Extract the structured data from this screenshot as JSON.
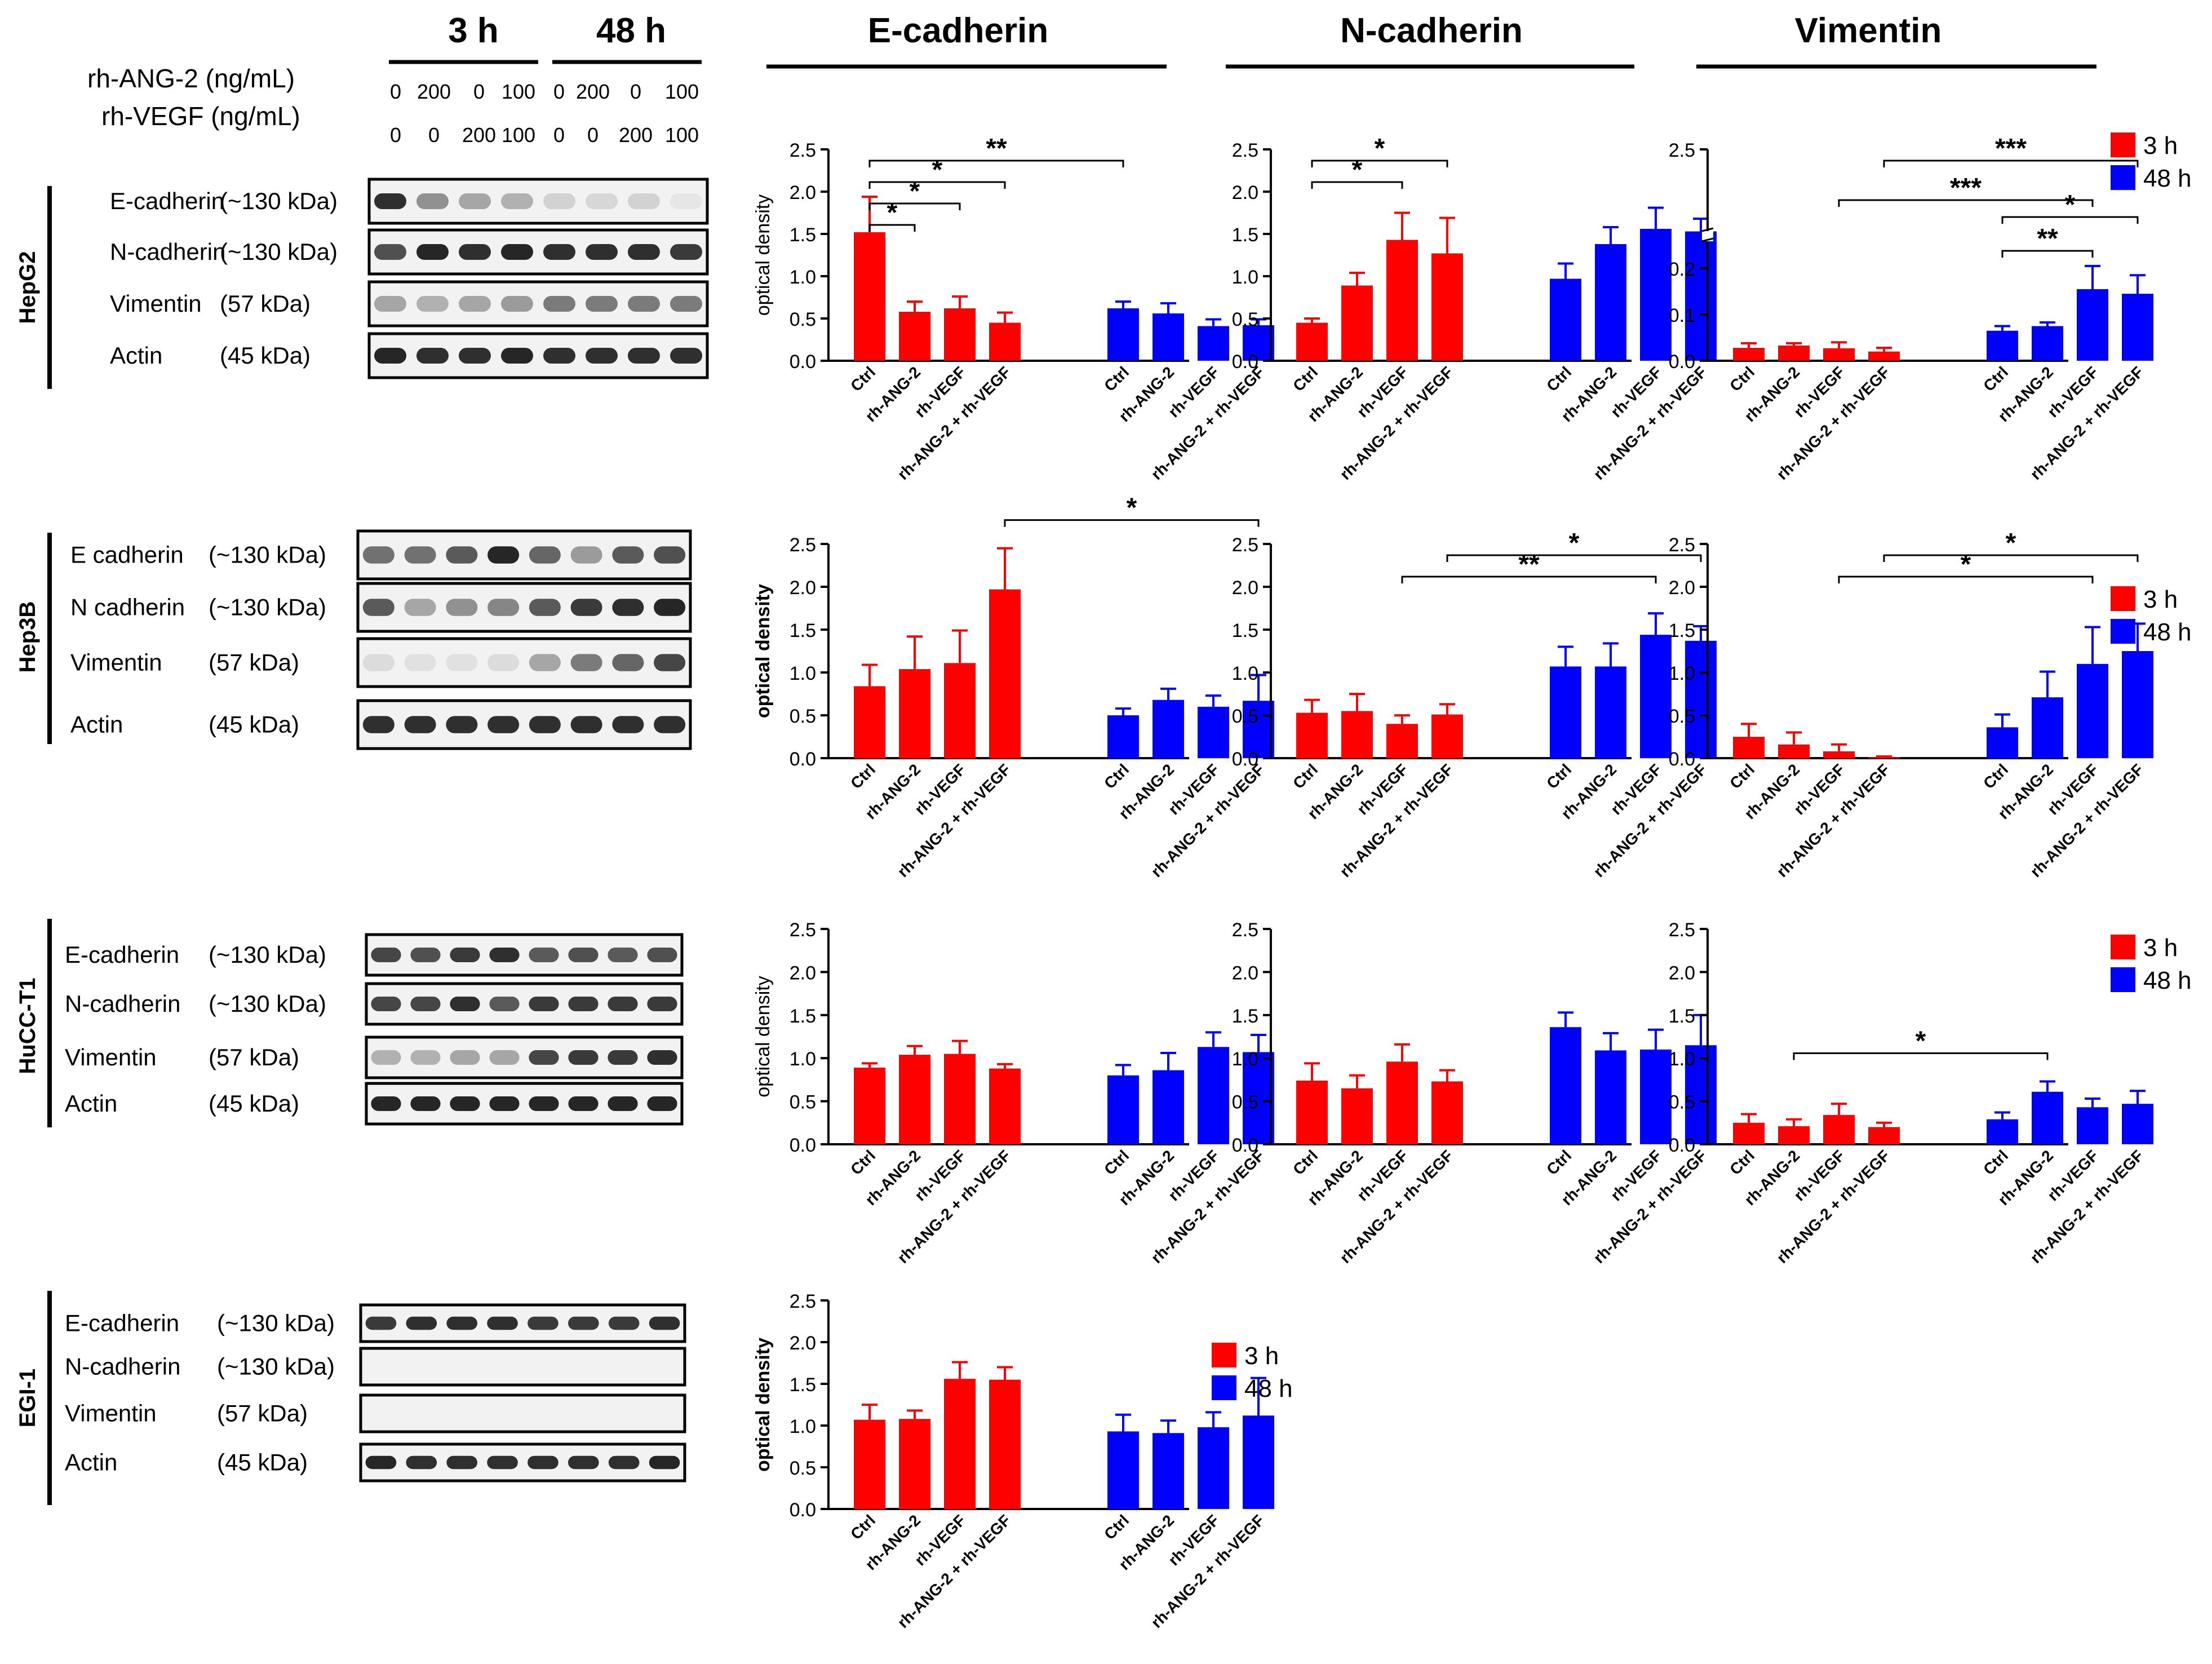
{
  "figure": {
    "time_headers": [
      "3 h",
      "48 h"
    ],
    "column_headers": [
      "E-cadherin",
      "N-cadherin",
      "Vimentin"
    ],
    "treatments": [
      {
        "label": "rh-ANG-2 (ng/mL)",
        "values": [
          "0",
          "200",
          "0",
          "100",
          "0",
          "200",
          "0",
          "100"
        ]
      },
      {
        "label": "rh-VEGF (ng/mL)",
        "values": [
          "0",
          "0",
          "200",
          "100",
          "0",
          "0",
          "200",
          "100"
        ]
      }
    ],
    "cell_lines": [
      "HepG2",
      "Hep3B",
      "HuCC-T1",
      "EGI-1"
    ],
    "legend": {
      "items": [
        "3 h",
        "48 h"
      ]
    },
    "colors": {
      "series_3h": "#ff0000",
      "series_48h": "#0000ff",
      "blot_bg": "#f2f2f2",
      "band": "#1a1a1a"
    }
  },
  "blots": [
    {
      "cell_line": "HepG2",
      "rows": [
        {
          "name": "E-cadherin",
          "size": "(~130 kDa)",
          "intensity": [
            0.9,
            0.45,
            0.35,
            0.3,
            0.15,
            0.12,
            0.15,
            0.05
          ]
        },
        {
          "name": "N-cadherin",
          "size": "(~130 kDa)",
          "intensity": [
            0.75,
            0.95,
            0.9,
            0.95,
            0.9,
            0.9,
            0.9,
            0.85
          ]
        },
        {
          "name": "Vimentin",
          "size": "(57 kDa)",
          "intensity": [
            0.35,
            0.3,
            0.35,
            0.4,
            0.55,
            0.55,
            0.55,
            0.55
          ]
        },
        {
          "name": "Actin",
          "size": "(45 kDa)",
          "intensity": [
            0.95,
            0.9,
            0.9,
            0.95,
            0.9,
            0.9,
            0.9,
            0.9
          ]
        }
      ]
    },
    {
      "cell_line": "Hep3B",
      "rows": [
        {
          "name": "E cadherin",
          "size": "(~130 kDa)",
          "intensity": [
            0.6,
            0.6,
            0.7,
            0.95,
            0.65,
            0.4,
            0.7,
            0.75
          ]
        },
        {
          "name": "N cadherin",
          "size": "(~130 kDa)",
          "intensity": [
            0.7,
            0.35,
            0.45,
            0.5,
            0.7,
            0.85,
            0.9,
            0.95
          ]
        },
        {
          "name": "Vimentin",
          "size": "(57 kDa)",
          "intensity": [
            0.1,
            0.08,
            0.08,
            0.1,
            0.35,
            0.55,
            0.65,
            0.8
          ]
        },
        {
          "name": "Actin",
          "size": "(45 kDa)",
          "intensity": [
            0.9,
            0.9,
            0.9,
            0.9,
            0.9,
            0.9,
            0.9,
            0.9
          ]
        }
      ]
    },
    {
      "cell_line": "HuCC-T1",
      "rows": [
        {
          "name": "E-cadherin",
          "size": "(~130 kDa)",
          "intensity": [
            0.8,
            0.75,
            0.85,
            0.9,
            0.7,
            0.75,
            0.7,
            0.75
          ]
        },
        {
          "name": "N-cadherin",
          "size": "(~130 kDa)",
          "intensity": [
            0.8,
            0.8,
            0.9,
            0.7,
            0.85,
            0.85,
            0.85,
            0.85
          ]
        },
        {
          "name": "Vimentin",
          "size": "(57 kDa)",
          "intensity": [
            0.3,
            0.3,
            0.35,
            0.35,
            0.8,
            0.85,
            0.85,
            0.9
          ]
        },
        {
          "name": "Actin",
          "size": "(45 kDa)",
          "intensity": [
            0.95,
            0.95,
            0.95,
            0.95,
            0.95,
            0.95,
            0.95,
            0.95
          ]
        }
      ]
    },
    {
      "cell_line": "EGI-1",
      "rows": [
        {
          "name": "E-cadherin",
          "size": "(~130 kDa)",
          "intensity": [
            0.85,
            0.9,
            0.9,
            0.9,
            0.85,
            0.85,
            0.85,
            0.9
          ]
        },
        {
          "name": "N-cadherin",
          "size": "(~130 kDa)",
          "intensity": [
            0,
            0,
            0,
            0,
            0,
            0,
            0,
            0
          ]
        },
        {
          "name": "Vimentin",
          "size": "(57 kDa)",
          "intensity": [
            0,
            0,
            0,
            0,
            0,
            0,
            0,
            0
          ]
        },
        {
          "name": "Actin",
          "size": "(45 kDa)",
          "intensity": [
            0.95,
            0.9,
            0.9,
            0.9,
            0.9,
            0.9,
            0.9,
            0.95
          ]
        }
      ]
    }
  ],
  "chart_data": [
    {
      "type": "bar",
      "cell_line": "HepG2",
      "protein": "E-cadherin",
      "ylabel": "optical density",
      "ylim": [
        0,
        2.5
      ],
      "yticks": [
        "0.0",
        "0.5",
        "1.0",
        "1.5",
        "2.0",
        "2.5"
      ],
      "categories": [
        "Ctrl",
        "rh-ANG-2",
        "rh-VEGF",
        "rh-ANG-2 + rh-VEGF"
      ],
      "series": [
        {
          "name": "3 h",
          "values": [
            1.52,
            0.58,
            0.62,
            0.45
          ],
          "errors": [
            0.42,
            0.12,
            0.14,
            0.12
          ]
        },
        {
          "name": "48 h",
          "values": [
            0.62,
            0.56,
            0.41,
            0.42
          ],
          "errors": [
            0.08,
            0.12,
            0.08,
            0.07
          ]
        }
      ],
      "brackets": [
        {
          "from": [
            0,
            0
          ],
          "to": [
            0,
            1
          ],
          "label": "*"
        },
        {
          "from": [
            0,
            0
          ],
          "to": [
            0,
            2
          ],
          "label": "*"
        },
        {
          "from": [
            0,
            0
          ],
          "to": [
            0,
            3
          ],
          "label": "*"
        },
        {
          "from": [
            0,
            0
          ],
          "to": [
            1,
            0
          ],
          "label": "**"
        }
      ]
    },
    {
      "type": "bar",
      "cell_line": "HepG2",
      "protein": "N-cadherin",
      "ylabel": "",
      "ylim": [
        0,
        2.5
      ],
      "yticks": [
        "0.0",
        "0.5",
        "1.0",
        "1.5",
        "2.0",
        "2.5"
      ],
      "categories": [
        "Ctrl",
        "rh-ANG-2",
        "rh-VEGF",
        "rh-ANG-2 + rh-VEGF"
      ],
      "series": [
        {
          "name": "3 h",
          "values": [
            0.45,
            0.89,
            1.43,
            1.27
          ],
          "errors": [
            0.05,
            0.15,
            0.32,
            0.42
          ]
        },
        {
          "name": "48 h",
          "values": [
            0.97,
            1.38,
            1.56,
            1.53
          ],
          "errors": [
            0.18,
            0.2,
            0.25,
            0.15
          ]
        }
      ],
      "brackets": [
        {
          "from": [
            0,
            0
          ],
          "to": [
            0,
            2
          ],
          "label": "*"
        },
        {
          "from": [
            0,
            0
          ],
          "to": [
            0,
            3
          ],
          "label": "*"
        }
      ]
    },
    {
      "type": "bar",
      "cell_line": "HepG2",
      "protein": "Vimentin",
      "ylabel": "",
      "ylim": [
        0,
        0.25
      ],
      "yticks": [
        "0.0",
        "0.1",
        "0.2"
      ],
      "axis_break": {
        "below": 0.2,
        "top_label": "2.5"
      },
      "categories": [
        "Ctrl",
        "rh-ANG-2",
        "rh-VEGF",
        "rh-ANG-2 + rh-VEGF"
      ],
      "series": [
        {
          "name": "3 h",
          "values": [
            0.028,
            0.033,
            0.027,
            0.02
          ],
          "errors": [
            0.01,
            0.005,
            0.013,
            0.008
          ]
        },
        {
          "name": "48 h",
          "values": [
            0.065,
            0.075,
            0.155,
            0.145
          ],
          "errors": [
            0.01,
            0.008,
            0.05,
            0.04
          ]
        }
      ],
      "brackets": [
        {
          "from": [
            1,
            0
          ],
          "to": [
            1,
            2
          ],
          "label": "**"
        },
        {
          "from": [
            1,
            0
          ],
          "to": [
            1,
            3
          ],
          "label": "*"
        },
        {
          "from": [
            0,
            2
          ],
          "to": [
            1,
            2
          ],
          "label": "***"
        },
        {
          "from": [
            0,
            3
          ],
          "to": [
            1,
            3
          ],
          "label": "***"
        }
      ],
      "legend": [
        "3 h",
        "48 h"
      ]
    },
    {
      "type": "bar",
      "cell_line": "Hep3B",
      "protein": "E-cadherin",
      "ylabel": "optical density",
      "ylim": [
        0,
        2.5
      ],
      "yticks": [
        "0.0",
        "0.5",
        "1.0",
        "1.5",
        "2.0",
        "2.5"
      ],
      "categories": [
        "Ctrl",
        "rh-ANG-2",
        "rh-VEGF",
        "rh-ANG-2 + rh-VEGF"
      ],
      "series": [
        {
          "name": "3 h",
          "values": [
            0.84,
            1.04,
            1.11,
            1.97
          ],
          "errors": [
            0.25,
            0.38,
            0.38,
            0.48
          ]
        },
        {
          "name": "48 h",
          "values": [
            0.5,
            0.68,
            0.6,
            0.67
          ],
          "errors": [
            0.08,
            0.13,
            0.13,
            0.3
          ]
        }
      ],
      "brackets": [
        {
          "from": [
            0,
            3
          ],
          "to": [
            1,
            3
          ],
          "label": "*"
        }
      ]
    },
    {
      "type": "bar",
      "cell_line": "Hep3B",
      "protein": "N-cadherin",
      "ylabel": "",
      "ylim": [
        0,
        2.5
      ],
      "yticks": [
        "0.0",
        "0.5",
        "1.0",
        "1.5",
        "2.0",
        "2.5"
      ],
      "categories": [
        "Ctrl",
        "rh-ANG-2",
        "rh-VEGF",
        "rh-ANG-2 + rh-VEGF"
      ],
      "series": [
        {
          "name": "3 h",
          "values": [
            0.53,
            0.55,
            0.4,
            0.51
          ],
          "errors": [
            0.15,
            0.2,
            0.1,
            0.12
          ]
        },
        {
          "name": "48 h",
          "values": [
            1.07,
            1.07,
            1.44,
            1.37
          ],
          "errors": [
            0.23,
            0.27,
            0.25,
            0.17
          ]
        }
      ],
      "brackets": [
        {
          "from": [
            0,
            2
          ],
          "to": [
            1,
            2
          ],
          "label": "**"
        },
        {
          "from": [
            0,
            3
          ],
          "to": [
            1,
            3
          ],
          "label": "*"
        }
      ]
    },
    {
      "type": "bar",
      "cell_line": "Hep3B",
      "protein": "Vimentin",
      "ylabel": "",
      "ylim": [
        0,
        2.5
      ],
      "yticks": [
        "0.0",
        "0.5",
        "1.0",
        "1.5",
        "2.0",
        "2.5"
      ],
      "categories": [
        "Ctrl",
        "rh-ANG-2",
        "rh-VEGF",
        "rh-ANG-2 + rh-VEGF"
      ],
      "series": [
        {
          "name": "3 h",
          "values": [
            0.25,
            0.16,
            0.08,
            0.01
          ],
          "errors": [
            0.15,
            0.14,
            0.08,
            0.01
          ]
        },
        {
          "name": "48 h",
          "values": [
            0.36,
            0.71,
            1.1,
            1.25
          ],
          "errors": [
            0.15,
            0.3,
            0.43,
            0.32
          ]
        }
      ],
      "brackets": [
        {
          "from": [
            0,
            2
          ],
          "to": [
            1,
            2
          ],
          "label": "*"
        },
        {
          "from": [
            0,
            3
          ],
          "to": [
            1,
            3
          ],
          "label": "*"
        }
      ],
      "legend": [
        "3 h",
        "48 h"
      ]
    },
    {
      "type": "bar",
      "cell_line": "HuCC-T1",
      "protein": "E-cadherin",
      "ylabel": "optical density",
      "ylim": [
        0,
        2.5
      ],
      "yticks": [
        "0.0",
        "0.5",
        "1.0",
        "1.5",
        "2.0",
        "2.5"
      ],
      "categories": [
        "Ctrl",
        "rh-ANG-2",
        "rh-VEGF",
        "rh-ANG-2 + rh-VEGF"
      ],
      "series": [
        {
          "name": "3 h",
          "values": [
            0.89,
            1.04,
            1.05,
            0.88
          ],
          "errors": [
            0.05,
            0.1,
            0.15,
            0.05
          ]
        },
        {
          "name": "48 h",
          "values": [
            0.8,
            0.86,
            1.13,
            1.07
          ],
          "errors": [
            0.12,
            0.2,
            0.17,
            0.2
          ]
        }
      ],
      "brackets": []
    },
    {
      "type": "bar",
      "cell_line": "HuCC-T1",
      "protein": "N-cadherin",
      "ylabel": "",
      "ylim": [
        0,
        2.5
      ],
      "yticks": [
        "0.0",
        "0.5",
        "1.0",
        "1.5",
        "2.0",
        "2.5"
      ],
      "categories": [
        "Ctrl",
        "rh-ANG-2",
        "rh-VEGF",
        "rh-ANG-2 + rh-VEGF"
      ],
      "series": [
        {
          "name": "3 h",
          "values": [
            0.74,
            0.65,
            0.96,
            0.73
          ],
          "errors": [
            0.2,
            0.15,
            0.2,
            0.13
          ]
        },
        {
          "name": "48 h",
          "values": [
            1.36,
            1.09,
            1.1,
            1.15
          ],
          "errors": [
            0.17,
            0.2,
            0.23,
            0.35
          ]
        }
      ],
      "brackets": []
    },
    {
      "type": "bar",
      "cell_line": "HuCC-T1",
      "protein": "Vimentin",
      "ylabel": "",
      "ylim": [
        0,
        2.5
      ],
      "yticks": [
        "0.0",
        "0.5",
        "1.0",
        "1.5",
        "2.0",
        "2.5"
      ],
      "categories": [
        "Ctrl",
        "rh-ANG-2",
        "rh-VEGF",
        "rh-ANG-2 + rh-VEGF"
      ],
      "series": [
        {
          "name": "3 h",
          "values": [
            0.25,
            0.21,
            0.34,
            0.2
          ],
          "errors": [
            0.1,
            0.08,
            0.13,
            0.05
          ]
        },
        {
          "name": "48 h",
          "values": [
            0.29,
            0.61,
            0.43,
            0.47
          ],
          "errors": [
            0.08,
            0.12,
            0.1,
            0.15
          ]
        }
      ],
      "brackets": [
        {
          "from": [
            0,
            1
          ],
          "to": [
            1,
            1
          ],
          "label": "*"
        }
      ],
      "legend": [
        "3 h",
        "48 h"
      ]
    },
    {
      "type": "bar",
      "cell_line": "EGI-1",
      "protein": "E-cadherin",
      "ylabel": "optical density",
      "ylim": [
        0,
        2.5
      ],
      "yticks": [
        "0.0",
        "0.5",
        "1.0",
        "1.5",
        "2.0",
        "2.5"
      ],
      "categories": [
        "Ctrl",
        "rh-ANG-2",
        "rh-VEGF",
        "rh-ANG-2 + rh-VEGF"
      ],
      "series": [
        {
          "name": "3 h",
          "values": [
            1.07,
            1.08,
            1.56,
            1.55
          ],
          "errors": [
            0.18,
            0.1,
            0.2,
            0.15
          ]
        },
        {
          "name": "48 h",
          "values": [
            0.93,
            0.91,
            0.98,
            1.12
          ],
          "errors": [
            0.2,
            0.15,
            0.18,
            0.45
          ]
        }
      ],
      "brackets": [],
      "legend": [
        "3 h",
        "48 h"
      ]
    }
  ]
}
